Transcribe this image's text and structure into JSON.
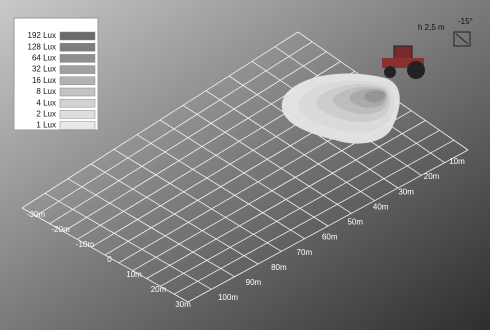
{
  "legend": {
    "items": [
      {
        "label": "192 Lux",
        "color": "#6a6a6a"
      },
      {
        "label": "128 Lux",
        "color": "#7c7c7c"
      },
      {
        "label": "64 Lux",
        "color": "#8e8e8e"
      },
      {
        "label": "32 Lux",
        "color": "#a0a0a0"
      },
      {
        "label": "16 Lux",
        "color": "#b2b2b2"
      },
      {
        "label": "8 Lux",
        "color": "#c3c3c3"
      },
      {
        "label": "4 Lux",
        "color": "#d2d2d2"
      },
      {
        "label": "2 Lux",
        "color": "#dedede"
      },
      {
        "label": "1 Lux",
        "color": "#e9e9e9"
      }
    ]
  },
  "lateral_labels": [
    "-30m",
    "-20m",
    "-10m",
    "0",
    "10m",
    "20m",
    "30m"
  ],
  "distance_labels": [
    "10m",
    "20m",
    "30m",
    "40m",
    "50m",
    "60m",
    "70m",
    "80m",
    "90m",
    "100m"
  ],
  "mounting": {
    "height": "h 2,5 m",
    "angle": "-15°"
  }
}
